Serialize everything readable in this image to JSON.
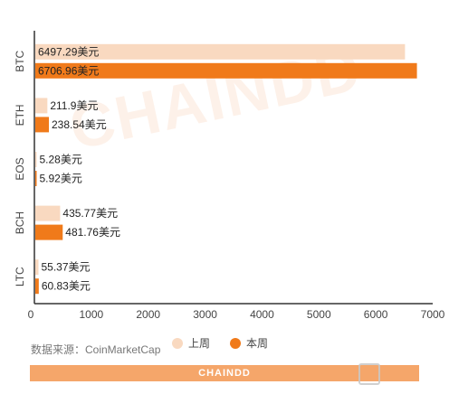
{
  "brand": "CHAINDD",
  "source_text": "数据来源：CoinMarketCap",
  "legend": {
    "prev_label": "上周",
    "curr_label": "本周"
  },
  "colors": {
    "prev": "#f9d9c0",
    "curr": "#f07a1a",
    "axis": "#333333",
    "footer": "#f5a66a"
  },
  "chart_data": {
    "type": "bar",
    "orientation": "horizontal",
    "categories": [
      "BTC",
      "ETH",
      "EOS",
      "BCH",
      "LTC"
    ],
    "series": [
      {
        "name": "上周",
        "values": [
          6497.29,
          211.9,
          5.28,
          435.77,
          55.37
        ]
      },
      {
        "name": "本周",
        "values": [
          6706.96,
          238.54,
          5.92,
          481.76,
          60.83
        ]
      }
    ],
    "value_labels": {
      "上周": [
        "6497.29美元",
        "211.9美元",
        "5.28美元",
        "435.77美元",
        "55.37美元"
      ],
      "本周": [
        "6706.96美元",
        "238.54美元",
        "5.92美元",
        "481.76美元",
        "60.83美元"
      ]
    },
    "xlim": [
      0,
      7000
    ],
    "xticks": [
      "0",
      "1000",
      "2000",
      "3000",
      "4000",
      "5000",
      "6000",
      "7000"
    ],
    "grid": false,
    "legend_position": "bottom"
  }
}
